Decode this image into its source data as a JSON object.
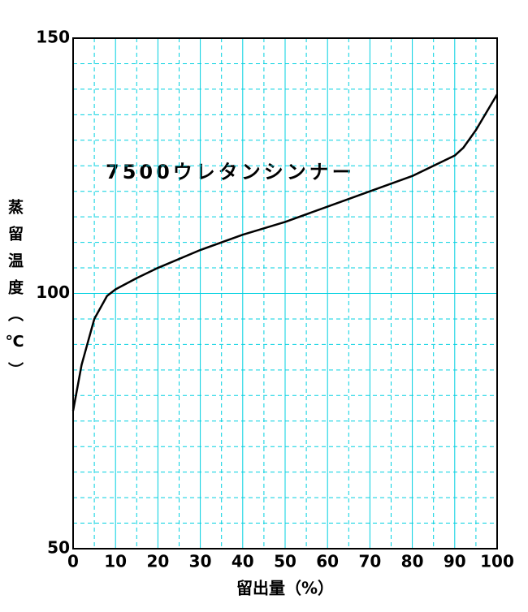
{
  "chart_data": {
    "type": "line",
    "annotation": "7500ウレタンシンナー",
    "xlabel": "留出量（%）",
    "ylabel": "蒸留温度（℃）",
    "x": [
      0,
      2,
      5,
      8,
      10,
      15,
      20,
      30,
      40,
      50,
      60,
      70,
      80,
      90,
      92,
      95,
      100
    ],
    "series": [
      {
        "color": "#000000",
        "values": [
          77,
          86,
          95,
          99.5,
          100.8,
          103,
          105,
          108.5,
          111.5,
          114,
          117,
          120,
          123,
          127,
          128.5,
          132,
          139
        ]
      }
    ],
    "xlim": [
      0,
      100
    ],
    "xticks": [
      0,
      10,
      20,
      30,
      40,
      50,
      60,
      70,
      80,
      90,
      100
    ],
    "xminorticks": [
      5,
      15,
      25,
      35,
      45,
      55,
      65,
      75,
      85,
      95
    ],
    "ylim": [
      50,
      150
    ],
    "yticks": [
      50,
      100,
      150
    ],
    "yminorticks": [
      55,
      60,
      65,
      70,
      75,
      80,
      85,
      90,
      95,
      105,
      110,
      115,
      120,
      125,
      130,
      135,
      140,
      145
    ],
    "grid": true,
    "grid_color": "#00d0e0"
  }
}
